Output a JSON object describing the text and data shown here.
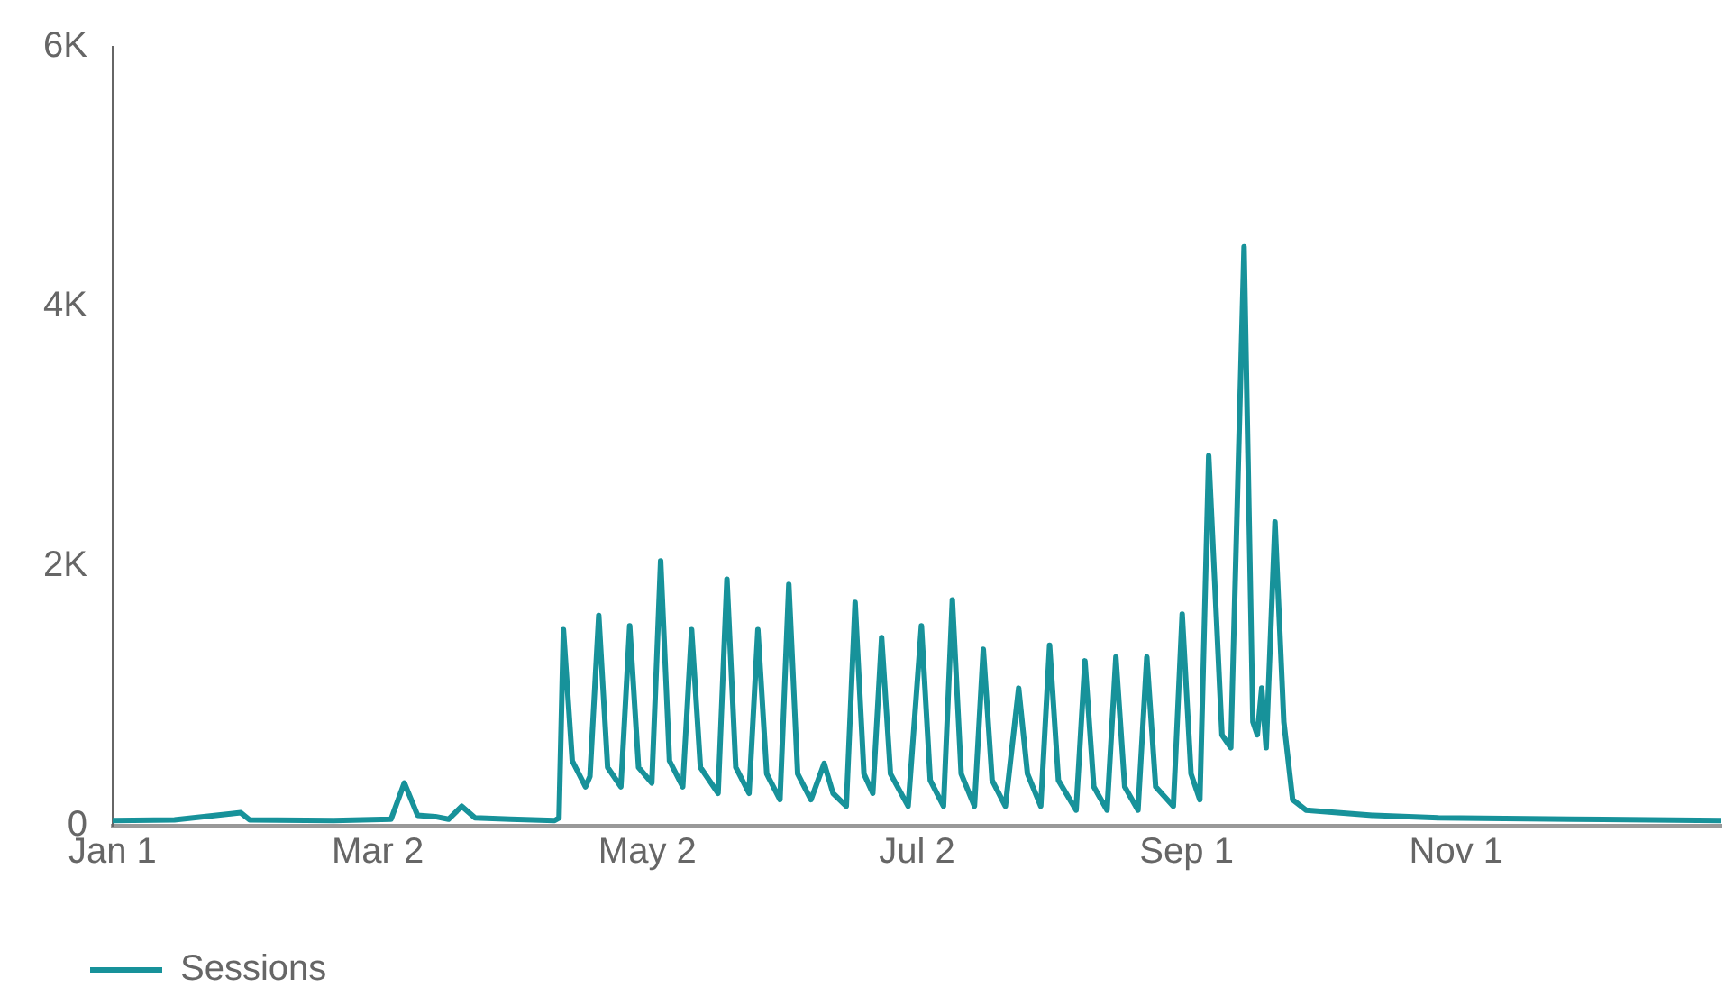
{
  "chart_data": {
    "type": "line",
    "x": [
      "--01-01",
      "--01-15",
      "--01-30",
      "--02-01",
      "--02-20",
      "--03-05",
      "--03-08",
      "--03-11",
      "--03-15",
      "--03-18",
      "--03-21",
      "--03-24",
      "--04-01",
      "--04-11",
      "--04-12",
      "--04-13",
      "--04-15",
      "--04-18",
      "--04-19",
      "--04-21",
      "--04-23",
      "--04-26",
      "--04-28",
      "--04-30",
      "--05-03",
      "--05-05",
      "--05-07",
      "--05-10",
      "--05-12",
      "--05-14",
      "--05-18",
      "--05-20",
      "--05-22",
      "--05-25",
      "--05-27",
      "--05-29",
      "--06-01",
      "--06-03",
      "--06-05",
      "--06-08",
      "--06-11",
      "--06-13",
      "--06-16",
      "--06-18",
      "--06-20",
      "--06-22",
      "--06-24",
      "--06-26",
      "--06-30",
      "--07-03",
      "--07-05",
      "--07-08",
      "--07-10",
      "--07-12",
      "--07-15",
      "--07-17",
      "--07-19",
      "--07-22",
      "--07-25",
      "--07-27",
      "--07-30",
      "--08-01",
      "--08-03",
      "--08-07",
      "--08-09",
      "--08-11",
      "--08-14",
      "--08-16",
      "--08-18",
      "--08-21",
      "--08-23",
      "--08-25",
      "--08-29",
      "--08-31",
      "--09-02",
      "--09-04",
      "--09-06",
      "--09-09",
      "--09-11",
      "--09-14",
      "--09-16",
      "--09-17",
      "--09-18",
      "--09-19",
      "--09-21",
      "--09-23",
      "--09-25",
      "--09-28",
      "--10-13",
      "--10-28",
      "--11-27",
      "--12-31"
    ],
    "series": [
      {
        "name": "Sessions",
        "color": "#17929a",
        "values": [
          40,
          45,
          100,
          45,
          40,
          50,
          330,
          80,
          70,
          50,
          150,
          60,
          50,
          40,
          60,
          1510,
          500,
          300,
          380,
          1620,
          450,
          300,
          1540,
          450,
          330,
          2040,
          500,
          300,
          1510,
          450,
          250,
          1900,
          450,
          250,
          1510,
          400,
          200,
          1860,
          400,
          200,
          480,
          250,
          150,
          1720,
          400,
          250,
          1450,
          400,
          150,
          1540,
          350,
          150,
          1740,
          400,
          150,
          1360,
          350,
          150,
          1060,
          400,
          150,
          1390,
          350,
          120,
          1270,
          300,
          120,
          1300,
          300,
          120,
          1300,
          300,
          150,
          1630,
          400,
          200,
          2850,
          700,
          600,
          4460,
          800,
          700,
          1060,
          600,
          2340,
          800,
          200,
          120,
          80,
          60,
          50,
          40
        ]
      }
    ],
    "xlim": [
      "--01-01",
      "--12-31"
    ],
    "xticks": [
      {
        "value": "--01-01",
        "label": "Jan 1"
      },
      {
        "value": "--03-02",
        "label": "Mar 2"
      },
      {
        "value": "--05-02",
        "label": "May 2"
      },
      {
        "value": "--07-02",
        "label": "Jul 2"
      },
      {
        "value": "--09-01",
        "label": "Sep 1"
      },
      {
        "value": "--11-01",
        "label": "Nov 1"
      }
    ],
    "ylim": [
      0,
      6000
    ],
    "yticks": [
      0,
      {
        "value": 2000,
        "label": "2K"
      },
      {
        "value": 4000,
        "label": "4K"
      },
      {
        "value": 6000,
        "label": "6K"
      }
    ],
    "grid": false,
    "legend": "bottom left",
    "marker": "none",
    "line_style": "solid"
  }
}
